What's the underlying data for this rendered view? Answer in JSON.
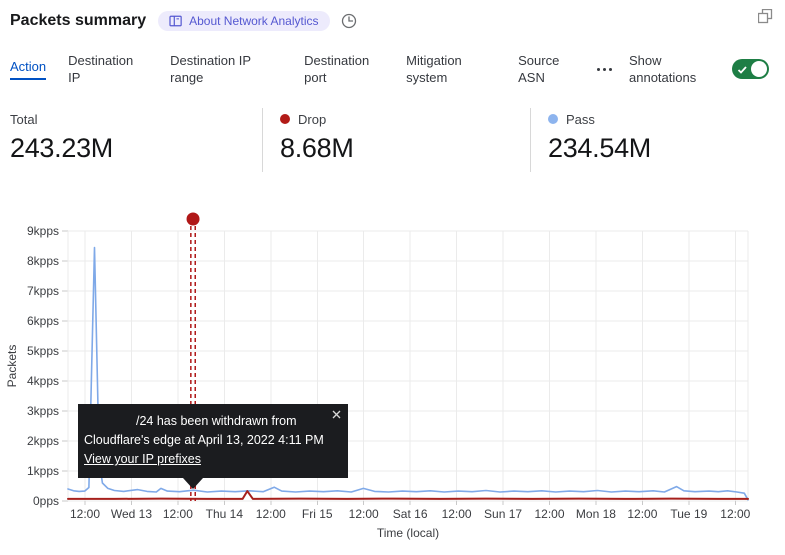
{
  "header": {
    "title": "Packets summary",
    "badge_label": "About Network Analytics"
  },
  "tabs": {
    "items": [
      {
        "label": "Action",
        "active": true
      },
      {
        "label": "Destination IP",
        "active": false
      },
      {
        "label": "Destination IP range",
        "active": false
      },
      {
        "label": "Destination port",
        "active": false
      },
      {
        "label": "Mitigation system",
        "active": false
      },
      {
        "label": "Source ASN",
        "active": false
      }
    ],
    "show_annotations_label": "Show annotations",
    "annotations_toggle_on": true
  },
  "stats": [
    {
      "label": "Total",
      "value": "243.23M"
    },
    {
      "label": "Drop",
      "value": "8.68M",
      "dot_color": "#b21b17"
    },
    {
      "label": "Pass",
      "value": "234.54M",
      "dot_color": "#8db4ee"
    }
  ],
  "tooltip": {
    "line1": "/24 has been withdrawn from",
    "line2": "Cloudflare's edge at April 13, 2022 4:11 PM",
    "link_label": "View your IP prefixes"
  },
  "colors": {
    "accent_blue": "#0051c3",
    "drop_red": "#a6201c",
    "pass_blue": "#7fa9e8",
    "annotation_red": "#b01717",
    "toggle_green": "#1e7e45",
    "grid": "#ebebeb",
    "axis_text": "#3b3d41",
    "badge_bg": "#edebfc",
    "badge_text": "#5558d1"
  },
  "chart_data": {
    "type": "line",
    "title": "Packets summary",
    "xlabel": "Time (local)",
    "ylabel": "Packets",
    "x_ticks": [
      "12:00",
      "Wed 13",
      "12:00",
      "Thu 14",
      "12:00",
      "Fri 15",
      "12:00",
      "Sat 16",
      "12:00",
      "Sun 17",
      "12:00",
      "Mon 18",
      "12:00",
      "Tue 19",
      "12:00"
    ],
    "y_ticks": [
      "0pps",
      "1kpps",
      "2kpps",
      "3kpps",
      "4kpps",
      "5kpps",
      "6kpps",
      "7kpps",
      "8kpps",
      "9kpps"
    ],
    "y_unit": "kpps",
    "ylim": [
      0,
      9
    ],
    "x_domain_days": [
      0,
      7.32
    ],
    "grid": true,
    "legend_position": "stats-row",
    "series": [
      {
        "name": "Pass",
        "color": "#7fa9e8",
        "width": 1.6,
        "points": [
          [
            0,
            0.4
          ],
          [
            0.06,
            0.34
          ],
          [
            0.12,
            0.32
          ],
          [
            0.18,
            0.33
          ],
          [
            0.225,
            0.45
          ],
          [
            0.255,
            4.5
          ],
          [
            0.285,
            8.45
          ],
          [
            0.315,
            4.2
          ],
          [
            0.335,
            1.4
          ],
          [
            0.37,
            0.6
          ],
          [
            0.43,
            0.42
          ],
          [
            0.5,
            0.35
          ],
          [
            0.6,
            0.32
          ],
          [
            0.75,
            0.38
          ],
          [
            0.85,
            0.32
          ],
          [
            0.95,
            0.3
          ],
          [
            1.0,
            0.42
          ],
          [
            1.07,
            0.33
          ],
          [
            1.2,
            0.31
          ],
          [
            1.35,
            0.36
          ],
          [
            1.5,
            0.3
          ],
          [
            1.65,
            0.33
          ],
          [
            1.8,
            0.31
          ],
          [
            1.95,
            0.34
          ],
          [
            2.1,
            0.31
          ],
          [
            2.22,
            0.46
          ],
          [
            2.3,
            0.33
          ],
          [
            2.45,
            0.3
          ],
          [
            2.6,
            0.33
          ],
          [
            2.75,
            0.31
          ],
          [
            2.9,
            0.34
          ],
          [
            3.05,
            0.3
          ],
          [
            3.18,
            0.42
          ],
          [
            3.3,
            0.32
          ],
          [
            3.45,
            0.3
          ],
          [
            3.6,
            0.33
          ],
          [
            3.75,
            0.31
          ],
          [
            3.9,
            0.34
          ],
          [
            4.05,
            0.3
          ],
          [
            4.2,
            0.33
          ],
          [
            4.35,
            0.31
          ],
          [
            4.5,
            0.35
          ],
          [
            4.65,
            0.3
          ],
          [
            4.8,
            0.33
          ],
          [
            4.95,
            0.31
          ],
          [
            5.1,
            0.34
          ],
          [
            5.25,
            0.3
          ],
          [
            5.4,
            0.33
          ],
          [
            5.55,
            0.31
          ],
          [
            5.7,
            0.35
          ],
          [
            5.85,
            0.3
          ],
          [
            6.0,
            0.33
          ],
          [
            6.15,
            0.31
          ],
          [
            6.3,
            0.34
          ],
          [
            6.42,
            0.3
          ],
          [
            6.55,
            0.48
          ],
          [
            6.63,
            0.34
          ],
          [
            6.75,
            0.31
          ],
          [
            6.9,
            0.33
          ],
          [
            7.0,
            0.31
          ],
          [
            7.1,
            0.34
          ],
          [
            7.2,
            0.3
          ],
          [
            7.28,
            0.26
          ],
          [
            7.32,
            0.04
          ]
        ]
      },
      {
        "name": "Drop",
        "color": "#a6201c",
        "width": 2,
        "points": [
          [
            0,
            0.07
          ],
          [
            0.5,
            0.07
          ],
          [
            1.0,
            0.08
          ],
          [
            1.5,
            0.07
          ],
          [
            1.88,
            0.07
          ],
          [
            1.93,
            0.33
          ],
          [
            1.99,
            0.07
          ],
          [
            2.5,
            0.08
          ],
          [
            3.0,
            0.07
          ],
          [
            3.5,
            0.08
          ],
          [
            4.0,
            0.07
          ],
          [
            4.5,
            0.08
          ],
          [
            5.0,
            0.07
          ],
          [
            5.5,
            0.08
          ],
          [
            6.0,
            0.07
          ],
          [
            6.5,
            0.08
          ],
          [
            7.0,
            0.07
          ],
          [
            7.32,
            0.07
          ]
        ]
      }
    ],
    "annotation": {
      "x_days": 1.346,
      "label": "/24 has been withdrawn from Cloudflare's edge at April 13, 2022 4:11 PM",
      "color": "#b01717"
    }
  }
}
